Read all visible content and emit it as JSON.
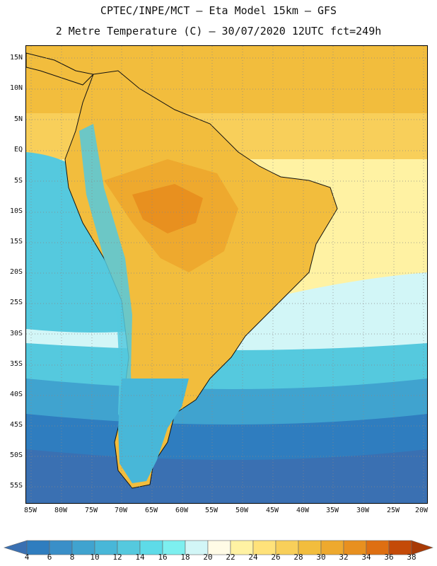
{
  "header": {
    "line1": "CPTEC/INPE/MCT –  Eta Model 15km – GFS",
    "line2": "2 Metre Temperature (C) – 30/07/2020 12UTC fct=249h"
  },
  "map": {
    "variable": "2 Metre Temperature",
    "units": "C",
    "lat_labels": [
      "15N",
      "10N",
      "5N",
      "EQ",
      "5S",
      "10S",
      "15S",
      "20S",
      "25S",
      "30S",
      "35S",
      "40S",
      "45S",
      "50S",
      "55S"
    ],
    "lon_labels": [
      "85W",
      "80W",
      "75W",
      "70W",
      "65W",
      "60W",
      "55W",
      "50W",
      "45W",
      "40W",
      "35W",
      "30W",
      "25W",
      "20W"
    ],
    "lat_range": [
      16.5,
      -57.5
    ],
    "lon_range": [
      -86,
      -19.5
    ],
    "land_color": "#e8a53a",
    "ocean_color": "#f2d56a",
    "outline_color": "#111111"
  },
  "colorbar": {
    "labels": [
      "4",
      "6",
      "8",
      "10",
      "12",
      "14",
      "16",
      "18",
      "20",
      "22",
      "24",
      "26",
      "28",
      "30",
      "32",
      "34",
      "36",
      "38"
    ],
    "colors": [
      "#3a70b2",
      "#2f7dbf",
      "#3a8fc8",
      "#40a3cf",
      "#48b7d8",
      "#55c9de",
      "#5edbe8",
      "#7defef",
      "#d2f6f7",
      "#fffbe6",
      "#fff2a3",
      "#ffe27a",
      "#f8cf5a",
      "#f2bd3d",
      "#eea92e",
      "#e8901f",
      "#de6f12",
      "#c44a08",
      "#a83a06"
    ]
  }
}
